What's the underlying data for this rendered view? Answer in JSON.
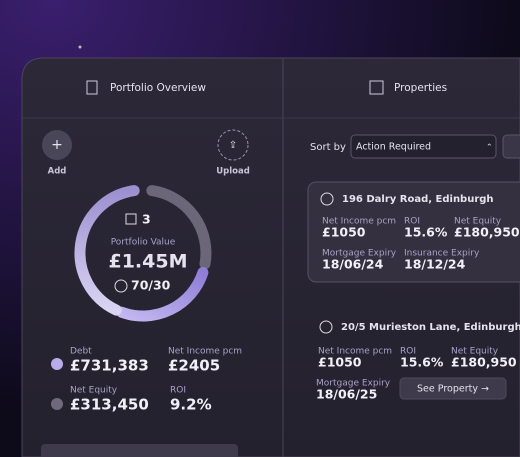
{
  "header": {
    "left_tab": "Portfolio Overview",
    "right_tab": "Properties"
  },
  "actions": {
    "add": "Add",
    "upload": "Upload"
  },
  "portfolio": {
    "count": "3",
    "label": "Portfolio Value",
    "value": "£1.45M",
    "split": "70/30"
  },
  "stats": [
    {
      "label": "Debt",
      "value": "£731,383"
    },
    {
      "label": "Net Income pcm",
      "value": "£2405"
    },
    {
      "label": "Net Equity",
      "value": "£313,450"
    },
    {
      "label": "ROI",
      "value": "9.2%"
    }
  ],
  "sort": {
    "label": "Sort by",
    "selected": "Action Required"
  },
  "properties": [
    {
      "address": "196 Dalry Road, Edinburgh",
      "fields": [
        {
          "label": "Net Income pcm",
          "value": "£1050"
        },
        {
          "label": "ROI",
          "value": "15.6%"
        },
        {
          "label": "Net Equity",
          "value": "£180,950"
        },
        {
          "label": "Mortgage Expiry",
          "value": "18/06/24"
        },
        {
          "label": "Insurance Expiry",
          "value": "18/12/24"
        }
      ]
    },
    {
      "address": "20/5 Murieston Lane, Edinburgh",
      "fields": [
        {
          "label": "Net Income pcm",
          "value": "£1050"
        },
        {
          "label": "ROI",
          "value": "15.6%"
        },
        {
          "label": "Net Equity",
          "value": "£180,950"
        },
        {
          "label": "Mortgage Expiry",
          "value": "18/06/25"
        }
      ],
      "button": "See Property →"
    }
  ]
}
